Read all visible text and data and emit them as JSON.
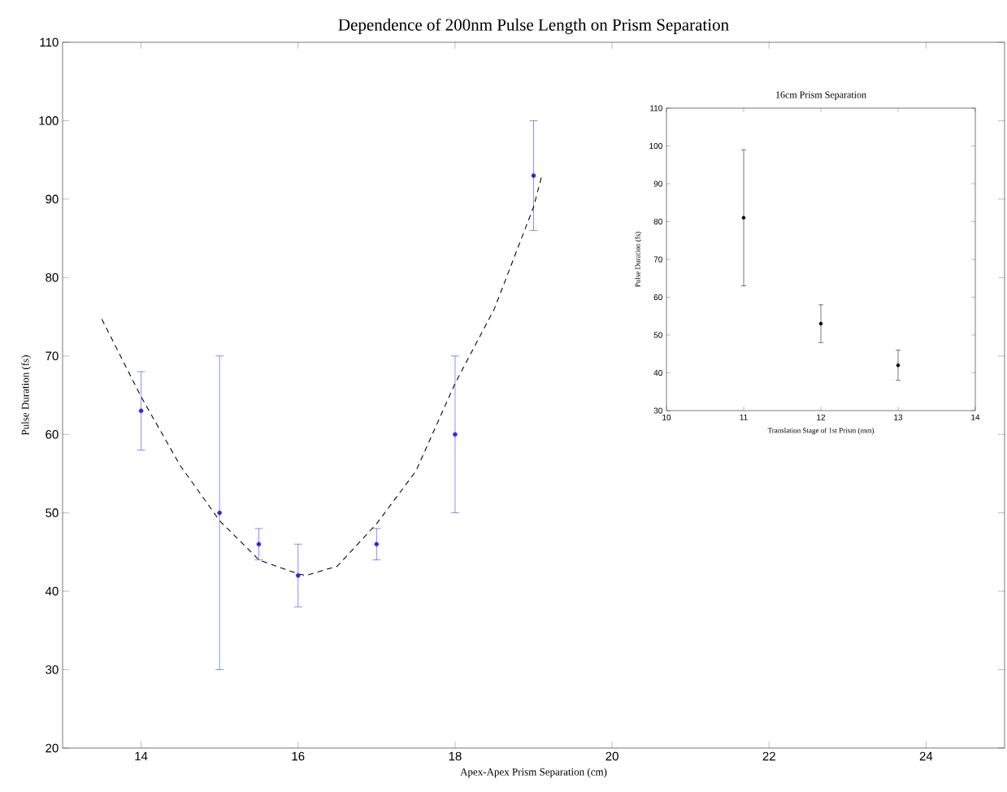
{
  "chart_data": [
    {
      "type": "scatter",
      "title": "Dependence of 200nm Pulse Length on Prism Separation",
      "xlabel": "Apex-Apex Prism Separation (cm)",
      "ylabel": "Pulse Duration (fs)",
      "xlim": [
        13,
        25
      ],
      "ylim": [
        20,
        110
      ],
      "xticks": [
        14,
        16,
        18,
        20,
        22,
        24
      ],
      "yticks": [
        20,
        30,
        40,
        50,
        60,
        70,
        80,
        90,
        100,
        110
      ],
      "x": [
        14,
        15,
        15.5,
        16,
        17,
        18,
        19
      ],
      "series": [
        {
          "color": "#2a2ae6",
          "marker": "circle",
          "values": [
            63,
            50,
            46,
            42,
            46,
            60,
            93
          ],
          "errors": [
            5,
            20,
            2,
            4,
            2,
            10,
            7
          ]
        },
        {
          "type": "line",
          "color": "#000000",
          "line_style": "dashed",
          "marker": "none",
          "x": [
            13.5,
            14,
            14.5,
            15,
            15.5,
            16,
            16.1,
            16.5,
            17,
            17.5,
            18,
            18.5,
            19,
            19.1
          ],
          "values": [
            74.7,
            64.8,
            56,
            49,
            44,
            42.2,
            42,
            43.2,
            48.6,
            55.3,
            66.5,
            76,
            89,
            92.8
          ]
        }
      ]
    },
    {
      "type": "scatter",
      "title": "16cm Prism Separation",
      "xlabel": "Translation Stage of 1st Prism (mm)",
      "ylabel": "Pulse Duration (fs)",
      "xlim": [
        10,
        14
      ],
      "ylim": [
        30,
        110
      ],
      "xticks": [
        10,
        11,
        12,
        13,
        14
      ],
      "yticks": [
        30,
        40,
        50,
        60,
        70,
        80,
        90,
        100,
        110
      ],
      "x": [
        11,
        12,
        13
      ],
      "series": [
        {
          "color": "#000000",
          "marker": "circle",
          "values": [
            81,
            53,
            42
          ],
          "errors": [
            18,
            5,
            4
          ]
        }
      ]
    }
  ]
}
